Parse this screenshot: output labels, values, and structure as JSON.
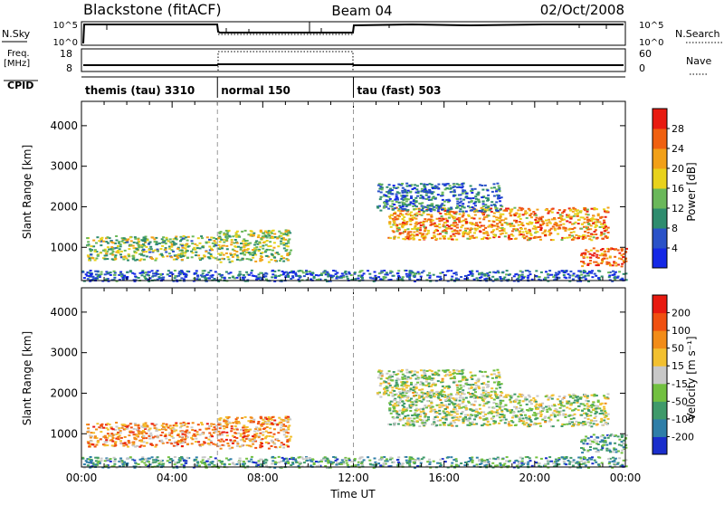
{
  "header": {
    "radar": "Blackstone (fitACF)",
    "beam": "Beam 04",
    "date": "02/Oct/2008"
  },
  "strip": {
    "nsky_label": "N.Sky",
    "nsky_ticks": [
      "10^5",
      "10^0"
    ],
    "nsearch_label": "N.Search",
    "nsearch_ticks": [
      "10^5",
      "10^0"
    ],
    "freq_label": "Freq.",
    "freq_unit": "[MHz]",
    "freq_ticks": [
      "18",
      "8"
    ],
    "nave_label": "Nave",
    "nave_ticks": [
      "60",
      "0"
    ],
    "cpid_label": "CPID",
    "cpid_segments": [
      {
        "label": "themis (tau) 3310",
        "start": 0,
        "end": 6
      },
      {
        "label": "normal 150",
        "start": 6,
        "end": 12
      },
      {
        "label": "tau (fast) 503",
        "start": 12,
        "end": 24
      }
    ]
  },
  "chart_data": [
    {
      "type": "heatmap",
      "panel": "power",
      "xlabel": "",
      "ylabel": "Slant Range [km]",
      "xlim": [
        0,
        24
      ],
      "ylim": [
        180,
        4600
      ],
      "yticks": [
        "1000",
        "2000",
        "3000",
        "4000"
      ],
      "colorbar_label": "Power [dB]",
      "colorbar_ticks": [
        "4",
        "8",
        "12",
        "16",
        "20",
        "24",
        "28"
      ],
      "colorbar_colors": [
        "#1428e6",
        "#2a52c8",
        "#2e8c6e",
        "#6ab85a",
        "#e8d21c",
        "#f2a018",
        "#f06010",
        "#e81a10"
      ],
      "echo_regions": [
        {
          "t0": 0.2,
          "t1": 6.0,
          "r0": 700,
          "r1": 1300,
          "level": 0.45
        },
        {
          "t0": 6.0,
          "t1": 9.2,
          "r0": 650,
          "r1": 1450,
          "level": 0.5
        },
        {
          "t0": 13.5,
          "t1": 23.2,
          "r0": 1200,
          "r1": 2000,
          "level": 0.7
        },
        {
          "t0": 13.0,
          "t1": 18.5,
          "r0": 1900,
          "r1": 2600,
          "level": 0.25
        },
        {
          "t0": 22.0,
          "t1": 24.0,
          "r0": 550,
          "r1": 1000,
          "level": 0.8
        },
        {
          "t0": 0.0,
          "t1": 24.0,
          "r0": 180,
          "r1": 450,
          "level": 0.2
        }
      ]
    },
    {
      "type": "heatmap",
      "panel": "velocity",
      "xlabel": "Time UT",
      "ylabel": "Slant Range [km]",
      "xlim": [
        0,
        24
      ],
      "ylim": [
        180,
        4600
      ],
      "xticks": [
        "00:00",
        "04:00",
        "08:00",
        "12:00",
        "16:00",
        "20:00",
        "00:00"
      ],
      "yticks": [
        "1000",
        "2000",
        "3000",
        "4000"
      ],
      "colorbar_label": "Velocity [m s⁻¹]",
      "colorbar_ticks": [
        "200",
        "100",
        "50",
        "15",
        "-15",
        "-50",
        "-100",
        "-200"
      ],
      "colorbar_colors": [
        "#1a2ecc",
        "#2f7ea8",
        "#3f9a6a",
        "#72c040",
        "#c8c8c8",
        "#f2c030",
        "#f28c18",
        "#f05010",
        "#e81a10"
      ],
      "echo_regions": [
        {
          "t0": 0.2,
          "t1": 6.0,
          "r0": 700,
          "r1": 1300,
          "level": 0.7
        },
        {
          "t0": 6.0,
          "t1": 9.2,
          "r0": 650,
          "r1": 1450,
          "level": 0.7
        },
        {
          "t0": 13.5,
          "t1": 23.2,
          "r0": 1200,
          "r1": 2000,
          "level": 0.45
        },
        {
          "t0": 13.0,
          "t1": 18.5,
          "r0": 1900,
          "r1": 2600,
          "level": 0.45
        },
        {
          "t0": 22.0,
          "t1": 24.0,
          "r0": 550,
          "r1": 1000,
          "level": 0.3
        },
        {
          "t0": 0.0,
          "t1": 24.0,
          "r0": 180,
          "r1": 450,
          "level": 0.3
        }
      ]
    }
  ]
}
